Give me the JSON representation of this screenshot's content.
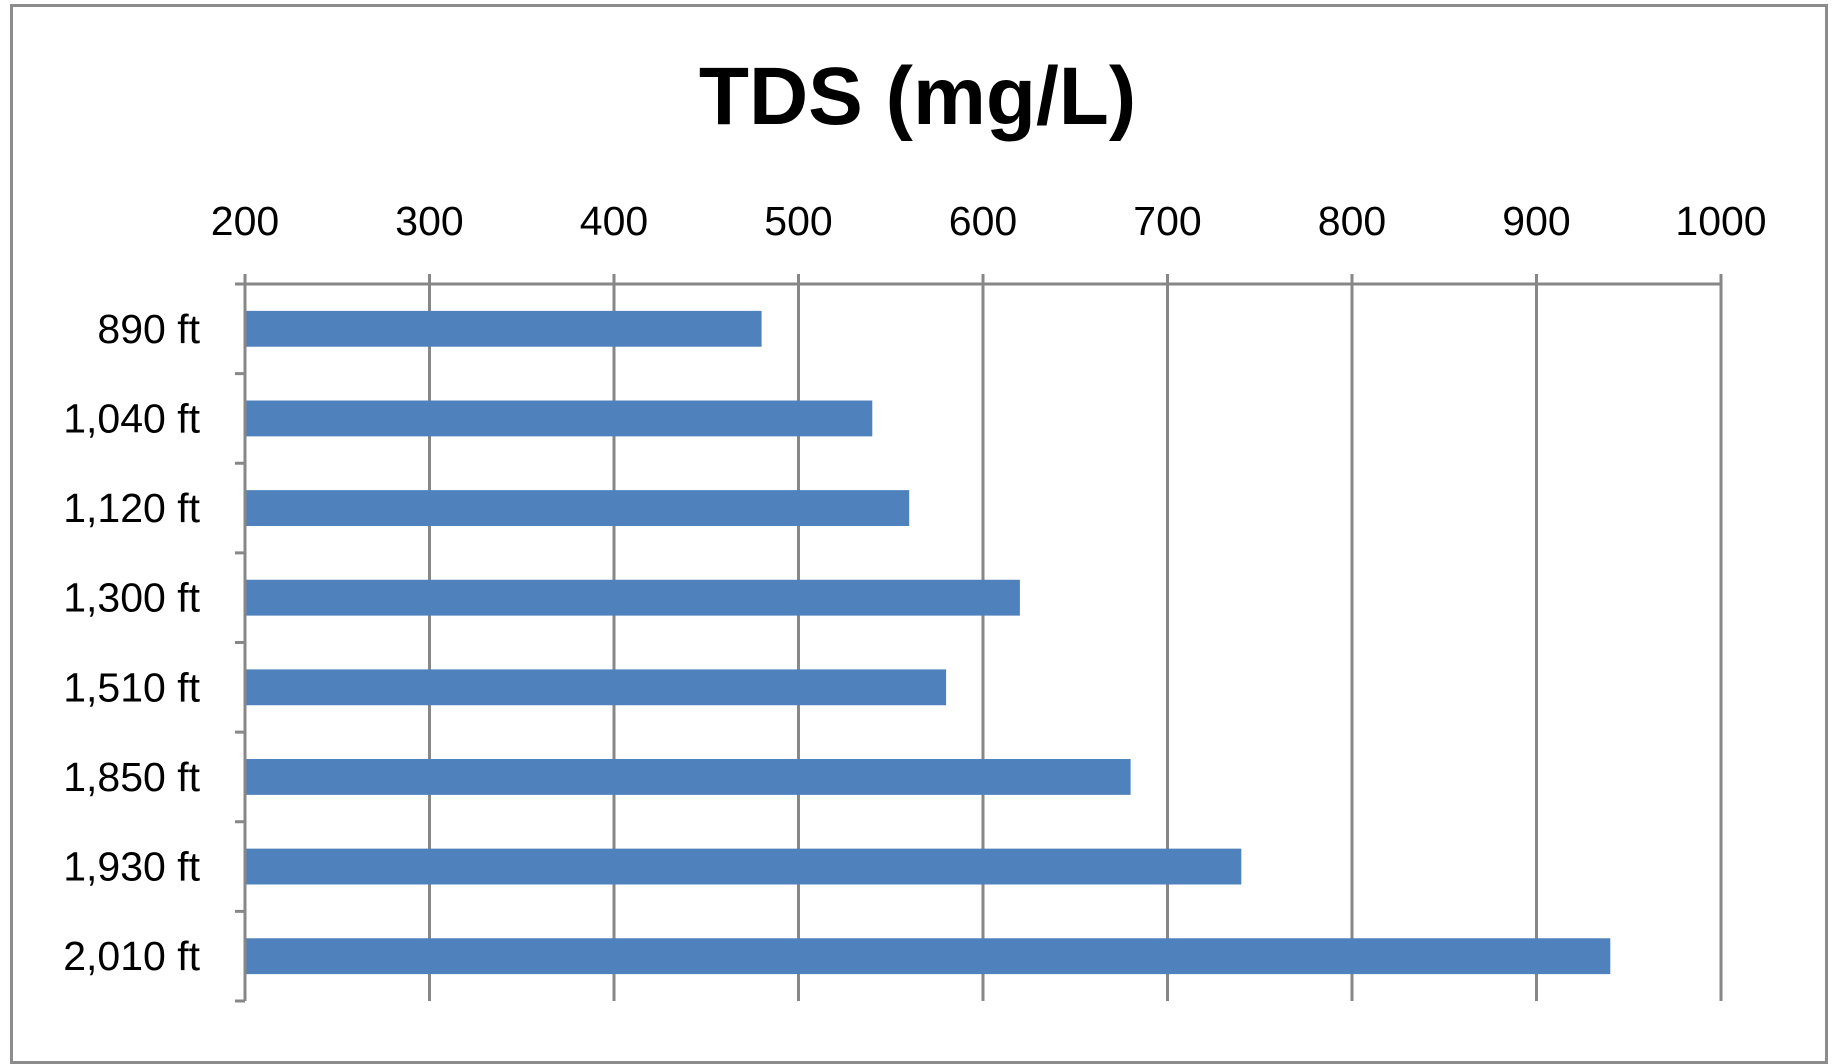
{
  "chart_data": {
    "type": "bar",
    "orientation": "horizontal",
    "title": "TDS (mg/L)",
    "xlabel": "",
    "ylabel": "",
    "categories": [
      "890 ft",
      "1,040 ft",
      "1,120 ft",
      "1,300 ft",
      "1,510 ft",
      "1,850 ft",
      "1,930 ft",
      "2,010 ft"
    ],
    "values": [
      480,
      540,
      560,
      620,
      580,
      680,
      740,
      940
    ],
    "xlim": [
      200,
      1000
    ],
    "x_ticks": [
      200,
      300,
      400,
      500,
      600,
      700,
      800,
      900,
      1000
    ],
    "x_tick_labels": [
      "200",
      "300",
      "400",
      "500",
      "600",
      "700",
      "800",
      "900",
      "1000"
    ],
    "value_axis_position": "top",
    "grid": true,
    "legend": "none",
    "colors": {
      "bar": "#4f81bd",
      "grid": "#878787",
      "axis": "#878787"
    }
  }
}
